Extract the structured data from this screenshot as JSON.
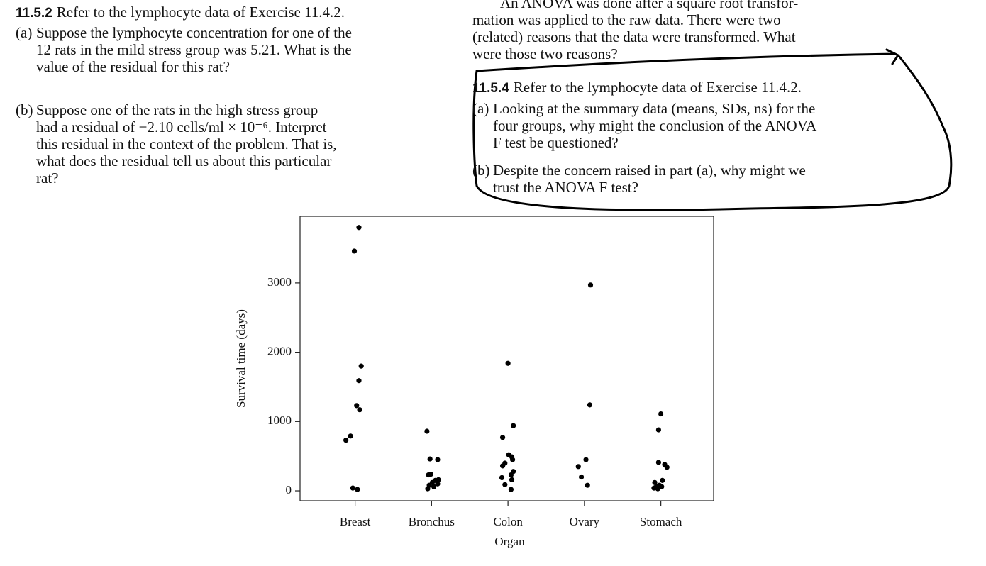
{
  "exercise_11_5_2": {
    "number": "11.5.2",
    "intro": "Refer to the lymphocyte data of Exercise 11.4.2.",
    "parts": [
      {
        "label": "(a)",
        "lines": [
          "Suppose the lymphocyte concentration for one of the",
          "12 rats in the mild stress group was 5.21. What is the",
          "value of the residual for this rat?"
        ]
      },
      {
        "label": "(b)",
        "lines": [
          "Suppose one of the rats in the high stress group",
          "had a residual of −2.10 cells/ml × 10⁻⁶. Interpret",
          "this residual in the context of the problem. That is,",
          "what does the residual tell us about this particular",
          "rat?"
        ]
      }
    ]
  },
  "continued_text": {
    "lines": [
      "An ANOVA was done after a square root transfor-",
      "mation was applied to the raw data. There were two",
      "(related) reasons that the data were transformed. What",
      "were those two reasons?"
    ]
  },
  "exercise_11_5_4": {
    "number": "11.5.4",
    "intro": "Refer to the lymphocyte data of Exercise 11.4.2.",
    "parts": [
      {
        "label": "(a)",
        "lines": [
          "Looking at the summary data (means, SDs, ns) for the",
          "four groups, why might the conclusion of the ANOVA",
          "F test be questioned?"
        ]
      },
      {
        "label": "(b)",
        "lines": [
          "Despite the concern raised in part (a), why might we",
          "trust the ANOVA F test?"
        ]
      }
    ]
  },
  "chart_data": {
    "type": "scatter",
    "xlabel": "Organ",
    "ylabel": "Survival time (days)",
    "color": "#000000",
    "xlim": [
      0.28,
      5.69
    ],
    "ylim": [
      -143,
      3961
    ],
    "xticks": [
      {
        "value": 1,
        "label": "Breast"
      },
      {
        "value": 2,
        "label": "Bronchus"
      },
      {
        "value": 3,
        "label": "Colon"
      },
      {
        "value": 4,
        "label": "Ovary"
      },
      {
        "value": 5,
        "label": "Stomach"
      }
    ],
    "yticks": [
      0,
      1000,
      2000,
      3000
    ],
    "x": [
      1.05,
      0.99,
      1.08,
      1.05,
      1.02,
      1.06,
      0.88,
      0.94,
      0.97,
      1.03,
      1.94,
      1.98,
      2.08,
      1.96,
      1.99,
      2.05,
      2.09,
      1.97,
      2.03,
      1.95,
      2.01,
      2.08,
      3.0,
      3.07,
      2.93,
      3.01,
      3.05,
      2.96,
      2.93,
      3.06,
      3.07,
      3.04,
      2.92,
      3.05,
      2.96,
      3.04,
      4.08,
      4.07,
      4.02,
      3.92,
      3.96,
      4.04,
      5.0,
      4.97,
      4.97,
      5.05,
      5.08,
      4.92,
      5.02,
      4.98,
      4.91,
      4.96,
      5.01,
      4.94
    ],
    "values": [
      3800,
      3460,
      1800,
      1590,
      1230,
      1170,
      730,
      790,
      40,
      20,
      860,
      460,
      450,
      230,
      240,
      150,
      160,
      80,
      60,
      30,
      120,
      100,
      1840,
      940,
      770,
      520,
      490,
      400,
      360,
      450,
      280,
      230,
      190,
      160,
      90,
      20,
      2970,
      1240,
      450,
      350,
      200,
      80,
      1110,
      880,
      410,
      380,
      340,
      120,
      150,
      80,
      40,
      30,
      60,
      60
    ]
  }
}
